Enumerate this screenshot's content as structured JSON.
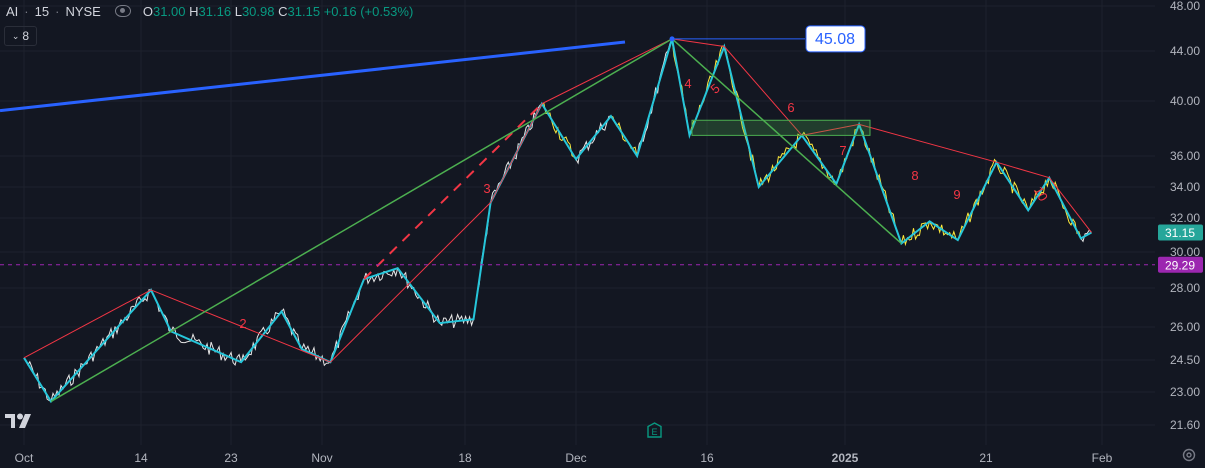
{
  "header": {
    "symbol": "AI",
    "interval": "15",
    "exchange": "NYSE",
    "open_label": "O",
    "open": "31.00",
    "high_label": "H",
    "high": "31.16",
    "low_label": "L",
    "low": "30.98",
    "close_label": "C",
    "close": "31.15",
    "change": "+0.16 (+0.53%)",
    "indicator_count": "8"
  },
  "colors": {
    "background": "#131722",
    "up": "#089981",
    "price_line": "#26a69a",
    "alt_price": "#ffeb3b",
    "zigzag": "#26c6da",
    "red_wave": "#f23645",
    "green_line": "#4caf50",
    "blue_line": "#2962ff",
    "support": "#9c27b0"
  },
  "chart_data": {
    "type": "line",
    "y_axis_ticks": [
      "48.00",
      "44.00",
      "40.00",
      "36.00",
      "34.00",
      "32.00",
      "30.00",
      "28.00",
      "26.00",
      "24.50",
      "23.00",
      "21.60"
    ],
    "x_axis_ticks": [
      "Oct",
      "14",
      "23",
      "Nov",
      "18",
      "Dec",
      "16",
      "2025",
      "21",
      "Feb"
    ],
    "price_labels": [
      {
        "text": "45.08",
        "value": 45.08,
        "style": "callout"
      },
      {
        "text": "31.15",
        "value": 31.15,
        "style": "last"
      },
      {
        "text": "29.29",
        "value": 29.29,
        "style": "level"
      }
    ],
    "wave_labels": [
      "2",
      "3",
      "4",
      "5",
      "6",
      "7",
      "8",
      "9",
      "10"
    ],
    "zigzag_points": [
      [
        "Oct 1",
        24.6
      ],
      [
        "Oct 4",
        22.6
      ],
      [
        "Oct 15",
        27.9
      ],
      [
        "Oct 17",
        25.8
      ],
      [
        "Oct 24",
        24.4
      ],
      [
        "Oct 28",
        26.8
      ],
      [
        "Oct 30",
        25.0
      ],
      [
        "Nov 2",
        24.4
      ],
      [
        "Nov 6",
        28.5
      ],
      [
        "Nov 10",
        29.1
      ],
      [
        "Nov 15",
        26.2
      ],
      [
        "Nov 19",
        26.4
      ],
      [
        "Nov 21",
        33.0
      ],
      [
        "Nov 27",
        39.8
      ],
      [
        "Dec 1",
        35.8
      ],
      [
        "Dec 5",
        38.9
      ],
      [
        "Dec 8",
        36.0
      ],
      [
        "Dec 12",
        45.08
      ],
      [
        "Dec 14",
        37.5
      ],
      [
        "Dec 18",
        44.4
      ],
      [
        "Dec 22",
        34.0
      ],
      [
        "Dec 27",
        37.5
      ],
      [
        "Dec 31",
        34.2
      ],
      [
        "Jan 3",
        38.3
      ],
      [
        "Jan 9",
        30.5
      ],
      [
        "Jan 13",
        31.8
      ],
      [
        "Jan 17",
        30.7
      ],
      [
        "Jan 22",
        35.6
      ],
      [
        "Jan 25",
        32.5
      ],
      [
        "Jan 27",
        34.6
      ],
      [
        "Jan 30",
        30.8
      ],
      [
        "Jan 31",
        31.15
      ]
    ],
    "support_level": 29.29,
    "resistance_zone": [
      37.5,
      38.6
    ],
    "trendline_blue": [
      [
        "Sep 27",
        39.3
      ],
      [
        "Dec 10",
        44.8
      ]
    ]
  }
}
